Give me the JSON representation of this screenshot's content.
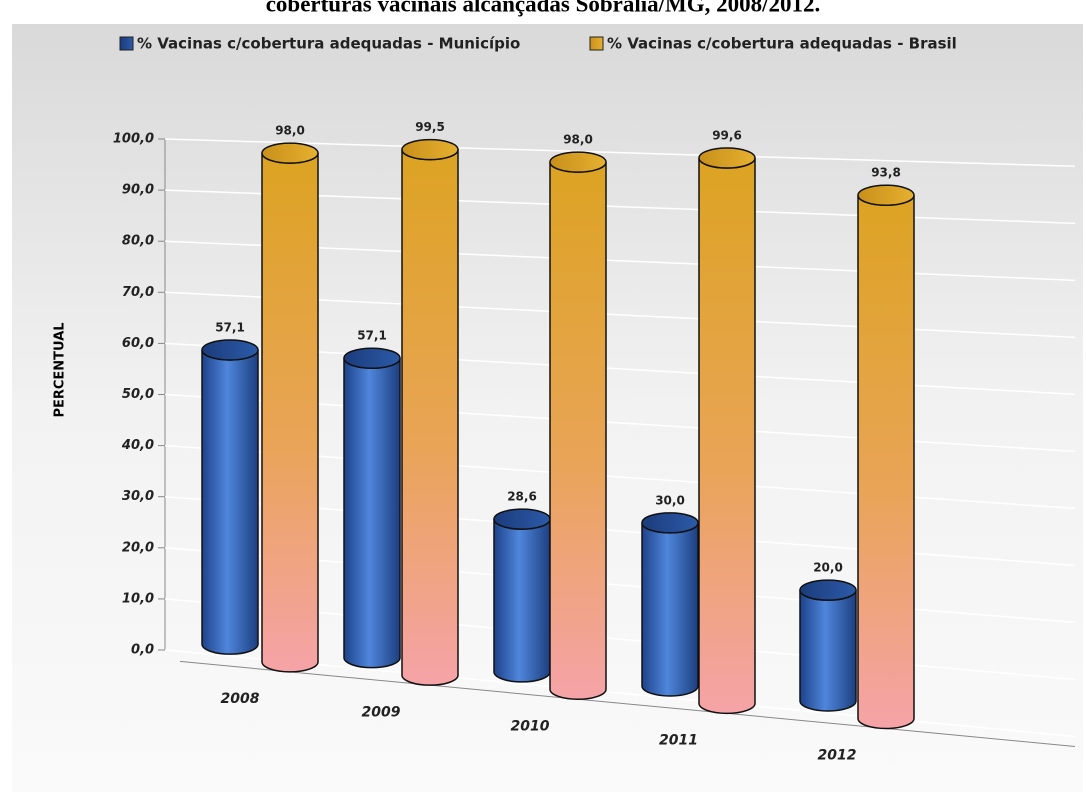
{
  "chart_data": {
    "type": "bar3d",
    "title": "coberturas vacinais alcançadas Sobrália/MG, 2008/2012.",
    "y_label": "PERCENTUAL",
    "categories": [
      "2008",
      "2009",
      "2010",
      "2011",
      "2012"
    ],
    "series": [
      {
        "name": "% Vacinas c/cobertura adequadas - Município",
        "color": "#2f62b8",
        "values": [
          57.1,
          57.1,
          28.6,
          30.0,
          20.0
        ],
        "value_labels": [
          "57,1",
          "57,1",
          "28,6",
          "30,0",
          "20,0"
        ]
      },
      {
        "name": "% Vacinas c/cobertura adequadas - Brasil",
        "color": "#dca322",
        "values": [
          98.0,
          99.5,
          98.0,
          99.6,
          93.8
        ],
        "value_labels": [
          "98,0",
          "99,5",
          "98,0",
          "99,6",
          "93,8"
        ]
      }
    ],
    "ylim": [
      0,
      100
    ],
    "yticks": [
      {
        "value": 0,
        "label": "0,0"
      },
      {
        "value": 10,
        "label": "10,0"
      },
      {
        "value": 20,
        "label": "20,0"
      },
      {
        "value": 30,
        "label": "30,0"
      },
      {
        "value": 40,
        "label": "40,0"
      },
      {
        "value": 50,
        "label": "50,0"
      },
      {
        "value": 60,
        "label": "60,0"
      },
      {
        "value": 70,
        "label": "70,0"
      },
      {
        "value": 80,
        "label": "80,0"
      },
      {
        "value": 90,
        "label": "90,0"
      },
      {
        "value": 100,
        "label": "100,0"
      }
    ],
    "grid": true,
    "legend": "top"
  }
}
